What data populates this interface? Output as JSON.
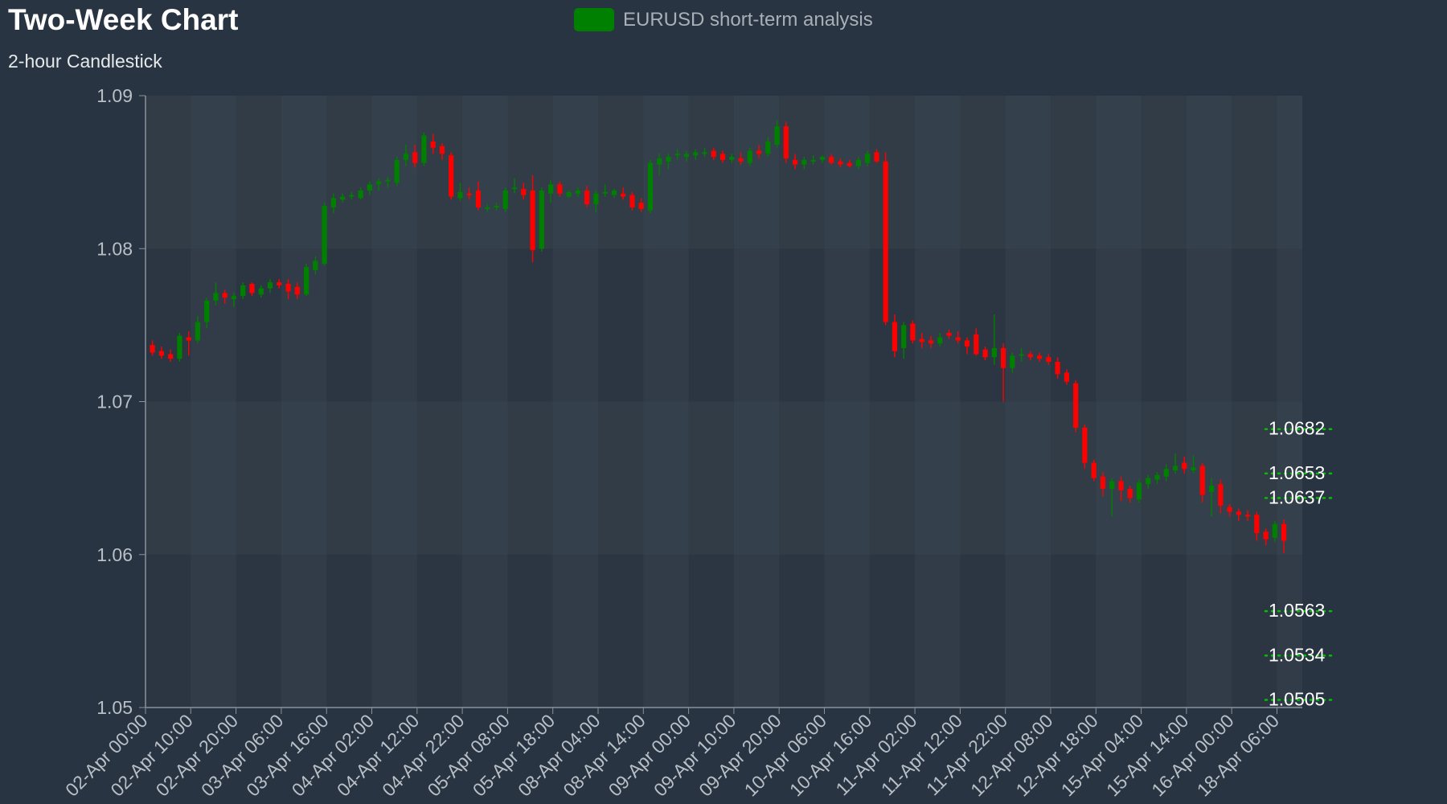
{
  "header": {
    "title": "Two-Week Chart",
    "subtitle": "2-hour Candlestick"
  },
  "legend": {
    "label": "EURUSD short-term analysis",
    "color": "#008000"
  },
  "colors": {
    "up": "#008000",
    "down": "#ff0000",
    "level_line": "#00c000",
    "band_light": "#36414d",
    "band_dark": "#2b3642",
    "axis": "#8a929a"
  },
  "chart_data": {
    "type": "candlestick",
    "title": "Two-Week Chart",
    "subtitle": "2-hour Candlestick",
    "series_name": "EURUSD short-term analysis",
    "ylim": [
      1.05,
      1.09
    ],
    "yticks": [
      "1.05",
      "1.06",
      "1.07",
      "1.08",
      "1.09"
    ],
    "xticks": [
      "02-Apr 00:00",
      "02-Apr 10:00",
      "02-Apr 20:00",
      "03-Apr 06:00",
      "03-Apr 16:00",
      "04-Apr 02:00",
      "04-Apr 12:00",
      "04-Apr 22:00",
      "05-Apr 08:00",
      "05-Apr 18:00",
      "08-Apr 04:00",
      "08-Apr 14:00",
      "09-Apr 00:00",
      "09-Apr 10:00",
      "09-Apr 20:00",
      "10-Apr 06:00",
      "10-Apr 16:00",
      "11-Apr 02:00",
      "11-Apr 12:00",
      "11-Apr 22:00",
      "12-Apr 08:00",
      "12-Apr 18:00",
      "15-Apr 04:00",
      "15-Apr 14:00",
      "16-Apr 00:00",
      "18-Apr 06:00"
    ],
    "candles_per_tick": 5,
    "levels": [
      1.0682,
      1.0653,
      1.0637,
      1.0563,
      1.0534,
      1.0505
    ],
    "level_labels": [
      "1.0682",
      "1.0653",
      "1.0637",
      "1.0563",
      "1.0534",
      "1.0505"
    ],
    "candles": [
      [
        1.0737,
        1.074,
        1.073,
        1.0732
      ],
      [
        1.0733,
        1.0736,
        1.0728,
        1.073
      ],
      [
        1.0731,
        1.0734,
        1.0726,
        1.0728
      ],
      [
        1.0728,
        1.0745,
        1.0726,
        1.0743
      ],
      [
        1.0742,
        1.0746,
        1.073,
        1.074
      ],
      [
        1.074,
        1.0756,
        1.0738,
        1.0752
      ],
      [
        1.0752,
        1.0768,
        1.0748,
        1.0766
      ],
      [
        1.0766,
        1.0778,
        1.0763,
        1.0771
      ],
      [
        1.0771,
        1.0773,
        1.0764,
        1.0768
      ],
      [
        1.0767,
        1.0771,
        1.0762,
        1.0769
      ],
      [
        1.0769,
        1.0778,
        1.0767,
        1.0776
      ],
      [
        1.0777,
        1.0778,
        1.0769,
        1.0771
      ],
      [
        1.077,
        1.0776,
        1.0768,
        1.0774
      ],
      [
        1.0774,
        1.078,
        1.0771,
        1.0778
      ],
      [
        1.0778,
        1.078,
        1.0774,
        1.0776
      ],
      [
        1.0777,
        1.078,
        1.0767,
        1.0772
      ],
      [
        1.0775,
        1.0778,
        1.0767,
        1.077
      ],
      [
        1.077,
        1.079,
        1.0769,
        1.0788
      ],
      [
        1.0786,
        1.0795,
        1.0783,
        1.0792
      ],
      [
        1.079,
        1.083,
        1.0789,
        1.0828
      ],
      [
        1.0827,
        1.0836,
        1.0823,
        1.0833
      ],
      [
        1.0832,
        1.0836,
        1.083,
        1.0834
      ],
      [
        1.0834,
        1.0837,
        1.0832,
        1.0835
      ],
      [
        1.0833,
        1.084,
        1.0832,
        1.0838
      ],
      [
        1.0838,
        1.0844,
        1.0835,
        1.0842
      ],
      [
        1.0842,
        1.0846,
        1.0838,
        1.0844
      ],
      [
        1.0844,
        1.0847,
        1.084,
        1.0845
      ],
      [
        1.0843,
        1.086,
        1.0841,
        1.0858
      ],
      [
        1.0858,
        1.0868,
        1.0854,
        1.0862
      ],
      [
        1.0863,
        1.0868,
        1.0853,
        1.0856
      ],
      [
        1.0856,
        1.0876,
        1.0854,
        1.0874
      ],
      [
        1.087,
        1.0875,
        1.0862,
        1.0866
      ],
      [
        1.0867,
        1.0869,
        1.0858,
        1.0862
      ],
      [
        1.0861,
        1.0863,
        1.0832,
        1.0834
      ],
      [
        1.0833,
        1.0843,
        1.0831,
        1.0837
      ],
      [
        1.0836,
        1.084,
        1.0832,
        1.0835
      ],
      [
        1.0838,
        1.0844,
        1.0825,
        1.0827
      ],
      [
        1.0827,
        1.0829,
        1.0824,
        1.0827
      ],
      [
        1.0827,
        1.083,
        1.0825,
        1.0828
      ],
      [
        1.0826,
        1.084,
        1.0824,
        1.0838
      ],
      [
        1.0839,
        1.0846,
        1.0836,
        1.084
      ],
      [
        1.0839,
        1.0843,
        1.0832,
        1.0835
      ],
      [
        1.0838,
        1.0848,
        1.0791,
        1.0799
      ],
      [
        1.08,
        1.084,
        1.0798,
        1.0838
      ],
      [
        1.0836,
        1.0845,
        1.083,
        1.0842
      ],
      [
        1.0842,
        1.0844,
        1.0834,
        1.0836
      ],
      [
        1.0834,
        1.0838,
        1.0833,
        1.0837
      ],
      [
        1.0836,
        1.084,
        1.0834,
        1.0838
      ],
      [
        1.0838,
        1.0841,
        1.0827,
        1.0829
      ],
      [
        1.0829,
        1.0838,
        1.0824,
        1.0836
      ],
      [
        1.0836,
        1.0842,
        1.0834,
        1.0837
      ],
      [
        1.0835,
        1.0839,
        1.0833,
        1.0838
      ],
      [
        1.0836,
        1.084,
        1.0832,
        1.0834
      ],
      [
        1.0835,
        1.0837,
        1.0825,
        1.0827
      ],
      [
        1.083,
        1.0833,
        1.0824,
        1.0826
      ],
      [
        1.0825,
        1.0858,
        1.0823,
        1.0856
      ],
      [
        1.0855,
        1.0862,
        1.0848,
        1.0859
      ],
      [
        1.0857,
        1.0862,
        1.0852,
        1.086
      ],
      [
        1.0862,
        1.0865,
        1.0858,
        1.0862
      ],
      [
        1.086,
        1.0864,
        1.0857,
        1.0862
      ],
      [
        1.0861,
        1.0865,
        1.0858,
        1.0863
      ],
      [
        1.0862,
        1.0866,
        1.086,
        1.0863
      ],
      [
        1.0864,
        1.0866,
        1.0858,
        1.086
      ],
      [
        1.0862,
        1.0864,
        1.0856,
        1.0858
      ],
      [
        1.0858,
        1.0862,
        1.0856,
        1.086
      ],
      [
        1.0859,
        1.0863,
        1.0855,
        1.0857
      ],
      [
        1.0856,
        1.0866,
        1.0854,
        1.0864
      ],
      [
        1.0864,
        1.0868,
        1.0859,
        1.0862
      ],
      [
        1.0862,
        1.0873,
        1.086,
        1.087
      ],
      [
        1.0868,
        1.0884,
        1.0866,
        1.088
      ],
      [
        1.088,
        1.0883,
        1.0856,
        1.0859
      ],
      [
        1.0858,
        1.0862,
        1.0852,
        1.0855
      ],
      [
        1.0855,
        1.086,
        1.0852,
        1.0858
      ],
      [
        1.0857,
        1.0861,
        1.0855,
        1.0858
      ],
      [
        1.0858,
        1.0861,
        1.0856,
        1.086
      ],
      [
        1.086,
        1.0862,
        1.0855,
        1.0856
      ],
      [
        1.0857,
        1.0859,
        1.0853,
        1.0855
      ],
      [
        1.0856,
        1.0858,
        1.0853,
        1.0854
      ],
      [
        1.0854,
        1.086,
        1.0852,
        1.0858
      ],
      [
        1.0856,
        1.0864,
        1.0854,
        1.0862
      ],
      [
        1.0863,
        1.0865,
        1.0856,
        1.0857
      ],
      [
        1.0857,
        1.0863,
        1.075,
        1.0752
      ],
      [
        1.0752,
        1.0757,
        1.0729,
        1.0733
      ],
      [
        1.0735,
        1.0752,
        1.0728,
        1.075
      ],
      [
        1.0751,
        1.0753,
        1.0738,
        1.074
      ],
      [
        1.0741,
        1.0745,
        1.0735,
        1.0739
      ],
      [
        1.074,
        1.0743,
        1.0735,
        1.0738
      ],
      [
        1.0738,
        1.0745,
        1.0736,
        1.0742
      ],
      [
        1.0745,
        1.0747,
        1.0741,
        1.0743
      ],
      [
        1.0742,
        1.0746,
        1.0738,
        1.074
      ],
      [
        1.074,
        1.0742,
        1.0731,
        1.0736
      ],
      [
        1.0744,
        1.0748,
        1.073,
        1.0731
      ],
      [
        1.0734,
        1.0736,
        1.0727,
        1.0729
      ],
      [
        1.0729,
        1.0757,
        1.0724,
        1.0735
      ],
      [
        1.0735,
        1.0738,
        1.07,
        1.0722
      ],
      [
        1.0722,
        1.0732,
        1.0719,
        1.073
      ],
      [
        1.073,
        1.0735,
        1.0726,
        1.0731
      ],
      [
        1.0731,
        1.0733,
        1.0727,
        1.0729
      ],
      [
        1.073,
        1.0732,
        1.0726,
        1.0728
      ],
      [
        1.0729,
        1.0731,
        1.0724,
        1.0726
      ],
      [
        1.0726,
        1.0729,
        1.0715,
        1.0718
      ],
      [
        1.0719,
        1.0721,
        1.0711,
        1.0713
      ],
      [
        1.0712,
        1.0714,
        1.068,
        1.0683
      ],
      [
        1.0683,
        1.0685,
        1.0656,
        1.066
      ],
      [
        1.066,
        1.0662,
        1.0648,
        1.065
      ],
      [
        1.0651,
        1.0654,
        1.0638,
        1.0643
      ],
      [
        1.0643,
        1.065,
        1.0625,
        1.0648
      ],
      [
        1.0648,
        1.0651,
        1.0635,
        1.0642
      ],
      [
        1.0643,
        1.0645,
        1.0634,
        1.0637
      ],
      [
        1.0636,
        1.0649,
        1.0634,
        1.0647
      ],
      [
        1.0646,
        1.0652,
        1.0643,
        1.065
      ],
      [
        1.0649,
        1.0654,
        1.0646,
        1.0652
      ],
      [
        1.0651,
        1.0659,
        1.0648,
        1.0656
      ],
      [
        1.0655,
        1.0666,
        1.0653,
        1.0658
      ],
      [
        1.066,
        1.0664,
        1.0653,
        1.0656
      ],
      [
        1.0655,
        1.0665,
        1.0653,
        1.0657
      ],
      [
        1.0658,
        1.066,
        1.0634,
        1.0639
      ],
      [
        1.0641,
        1.065,
        1.0625,
        1.0645
      ],
      [
        1.0646,
        1.0649,
        1.0627,
        1.0632
      ],
      [
        1.0631,
        1.0633,
        1.0625,
        1.0628
      ],
      [
        1.0628,
        1.063,
        1.0622,
        1.0626
      ],
      [
        1.0626,
        1.0629,
        1.0622,
        1.0625
      ],
      [
        1.0626,
        1.0628,
        1.0609,
        1.0614
      ],
      [
        1.0615,
        1.0617,
        1.0606,
        1.061
      ],
      [
        1.0611,
        1.0622,
        1.0608,
        1.062
      ],
      [
        1.062,
        1.0623,
        1.0601,
        1.0609
      ]
    ]
  }
}
